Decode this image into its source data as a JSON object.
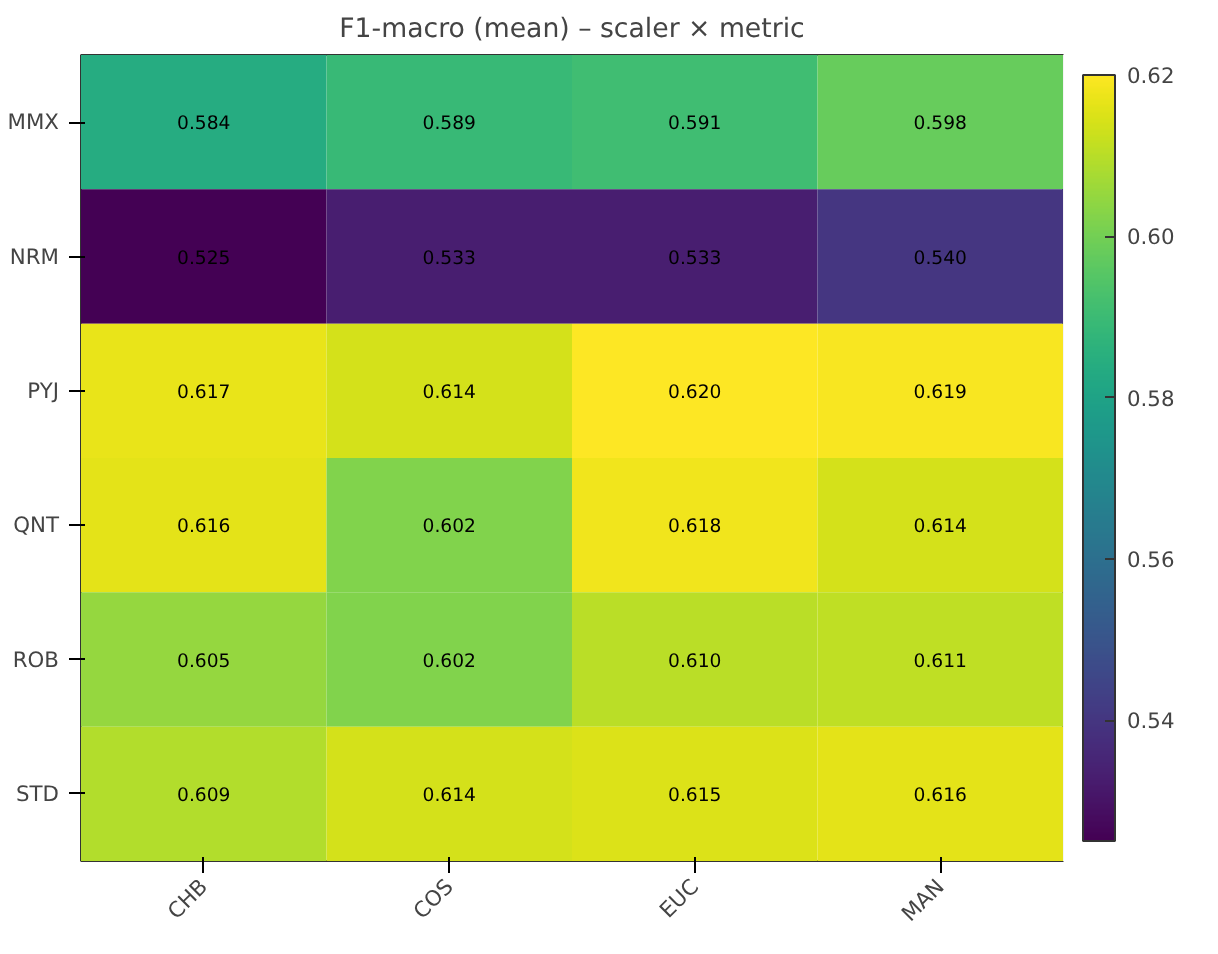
{
  "chart_data": {
    "type": "heatmap",
    "title": "F1-macro (mean) – scaler × metric",
    "categories": [
      "CHB",
      "COS",
      "EUC",
      "MAN"
    ],
    "y_categories": [
      "MMX",
      "NRM",
      "PYJ",
      "QNT",
      "ROB",
      "STD"
    ],
    "cells": [
      [
        0.584,
        0.589,
        0.591,
        0.598
      ],
      [
        0.525,
        0.533,
        0.533,
        0.54
      ],
      [
        0.617,
        0.614,
        0.62,
        0.619
      ],
      [
        0.616,
        0.602,
        0.618,
        0.614
      ],
      [
        0.605,
        0.602,
        0.61,
        0.611
      ],
      [
        0.609,
        0.614,
        0.615,
        0.616
      ]
    ],
    "clim": [
      0.525,
      0.62
    ],
    "cticks": [
      0.54,
      0.56,
      0.58,
      {
        "value": 0.6,
        "label": "0.60"
      },
      0.62
    ],
    "cell_labels": [
      [
        "0.584",
        "0.589",
        "0.591",
        "0.598"
      ],
      [
        "0.525",
        "0.533",
        "0.533",
        "0.540"
      ],
      [
        "0.617",
        "0.614",
        "0.620",
        "0.619"
      ],
      [
        "0.616",
        "0.602",
        "0.618",
        "0.614"
      ],
      [
        "0.605",
        "0.602",
        "0.610",
        "0.611"
      ],
      [
        "0.609",
        "0.614",
        "0.615",
        "0.616"
      ]
    ]
  }
}
